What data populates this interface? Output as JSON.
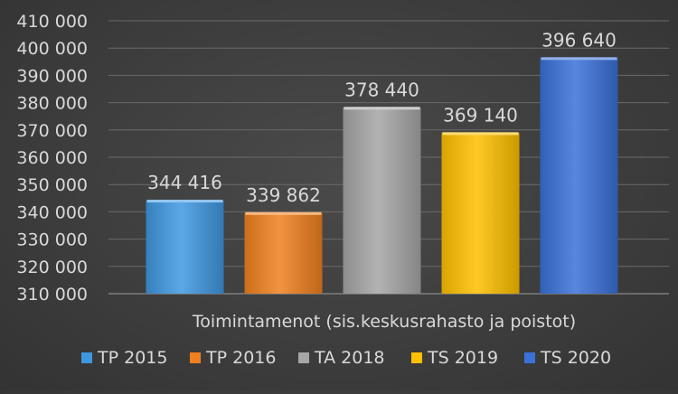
{
  "chart_data": {
    "type": "bar",
    "title": "",
    "xlabel": "Toimintamenot (sis.keskusrahasto ja poistot)",
    "ylabel": "",
    "ylim": [
      310000,
      410000
    ],
    "ytick_step": 10000,
    "yticks": [
      "310 000",
      "320 000",
      "330 000",
      "340 000",
      "350 000",
      "360 000",
      "370 000",
      "380 000",
      "390 000",
      "400 000",
      "410 000"
    ],
    "grid": true,
    "legend_position": "bottom",
    "series": [
      {
        "name": "TP 2015",
        "values": [
          344416
        ],
        "label": "344 416",
        "color": "#3f97e0"
      },
      {
        "name": "TP 2016",
        "values": [
          339862
        ],
        "label": "339 862",
        "color": "#f0801e"
      },
      {
        "name": "TA 2018",
        "values": [
          378440
        ],
        "label": "378 440",
        "color": "#a6a6a6"
      },
      {
        "name": "TS 2019",
        "values": [
          369140
        ],
        "label": "369 140",
        "color": "#ffc000"
      },
      {
        "name": "TS 2020",
        "values": [
          396640
        ],
        "label": "396 640",
        "color": "#3a71d8"
      }
    ]
  }
}
